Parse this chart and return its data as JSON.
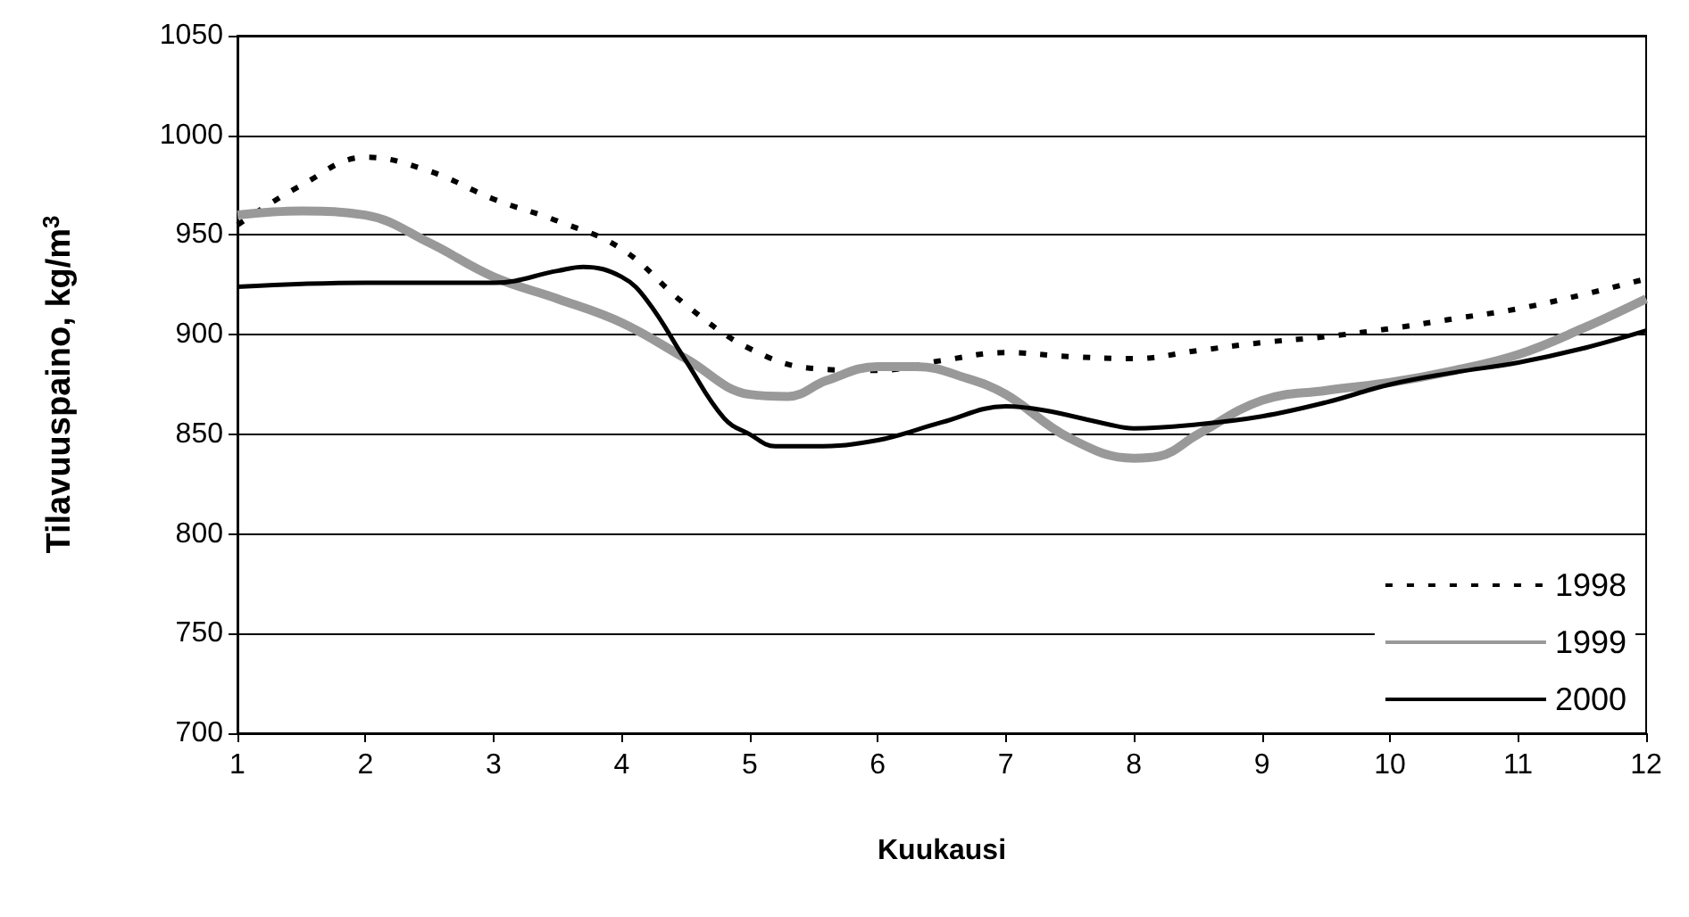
{
  "chart_data": {
    "type": "line",
    "xlabel": "Kuukausi",
    "ylabel": "Tilavuuspaino, kg/m$^{3}$",
    "xlim": [
      1,
      12
    ],
    "xticks": [
      1,
      2,
      3,
      4,
      5,
      6,
      7,
      8,
      9,
      10,
      11,
      12
    ],
    "ylim": [
      700,
      1050
    ],
    "yticks": [
      700,
      750,
      800,
      850,
      900,
      950,
      1000,
      1050
    ],
    "grid": "y",
    "legend": "bottom right",
    "marker": "none",
    "series": [
      {
        "name": "1998",
        "color": "#000000",
        "line_style": "dashed",
        "x": [
          1,
          1.5,
          2,
          2.5,
          3,
          3.5,
          4,
          4.5,
          5,
          5.5,
          6,
          6.5,
          7,
          7.5,
          8,
          8.5,
          9,
          9.5,
          10,
          10.5,
          11,
          11.5,
          12
        ],
        "values": [
          955,
          975,
          989,
          982,
          968,
          957,
          943,
          915,
          893,
          883,
          882,
          887,
          891,
          889,
          888,
          892,
          896,
          899,
          903,
          908,
          913,
          920,
          928
        ]
      },
      {
        "name": "1999",
        "color": "#999999",
        "line_style": "solid",
        "x": [
          1,
          1.5,
          2,
          2.5,
          3,
          3.5,
          4,
          4.5,
          5,
          5.3,
          5.6,
          6,
          6.3,
          6.7,
          7,
          7.5,
          8,
          8.2,
          8.5,
          9,
          9.5,
          10,
          10.5,
          11,
          11.5,
          12
        ],
        "values": [
          960,
          962,
          960,
          946,
          929,
          918,
          906,
          888,
          870,
          869,
          877,
          884,
          884,
          878,
          870,
          848,
          838,
          839,
          850,
          867,
          872,
          876,
          882,
          890,
          903,
          918
        ]
      },
      {
        "name": "2000",
        "color": "#000000",
        "line_style": "solid",
        "x": [
          1,
          2,
          3,
          3.5,
          3.7,
          4,
          4.2,
          4.5,
          4.8,
          5,
          5.2,
          5.5,
          6,
          6.5,
          7,
          7.3,
          7.8,
          8,
          8.5,
          9,
          9.5,
          10,
          10.5,
          11,
          11.5,
          12
        ],
        "values": [
          924,
          926,
          926,
          932,
          934,
          929,
          917,
          887,
          858,
          850,
          844,
          844,
          847,
          856,
          864,
          862,
          855,
          853,
          855,
          859,
          866,
          875,
          881,
          886,
          893,
          902
        ]
      }
    ]
  }
}
